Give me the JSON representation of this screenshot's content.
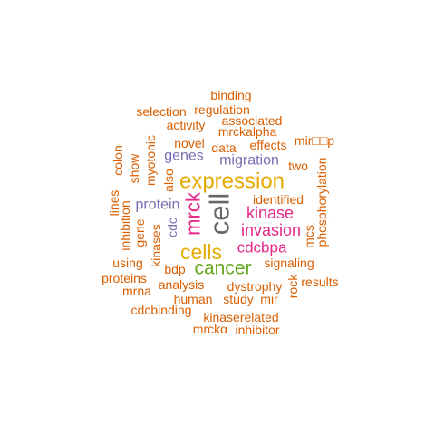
{
  "colors": {
    "orange": "#D95F02",
    "green": "#1B9E77",
    "purple": "#7570B3",
    "magenta": "#E7298A",
    "lime": "#66A61E",
    "gold": "#E6AB02",
    "gray": "#666666",
    "background": "#FFFFFF"
  },
  "words": [
    {
      "text": "cell",
      "color": "#666666",
      "rotated": true
    },
    {
      "text": "expression",
      "color": "#E6AB02",
      "rotated": false
    },
    {
      "text": "cells",
      "color": "#E6AB02",
      "rotated": false
    },
    {
      "text": "cancer",
      "color": "#66A61E",
      "rotated": false
    },
    {
      "text": "mrck",
      "color": "#E7298A",
      "rotated": true
    },
    {
      "text": "invasion",
      "color": "#E7298A",
      "rotated": false
    },
    {
      "text": "kinase",
      "color": "#E7298A",
      "rotated": false
    },
    {
      "text": "cdcbpa",
      "color": "#E7298A",
      "rotated": false
    },
    {
      "text": "migration",
      "color": "#7570B3",
      "rotated": false
    },
    {
      "text": "genes",
      "color": "#7570B3",
      "rotated": false
    },
    {
      "text": "protein",
      "color": "#7570B3",
      "rotated": false
    },
    {
      "text": "cdc",
      "color": "#7570B3",
      "rotated": true
    },
    {
      "text": "binding",
      "color": "#D95F02",
      "rotated": false
    },
    {
      "text": "regulation",
      "color": "#D95F02",
      "rotated": false
    },
    {
      "text": "selection",
      "color": "#D95F02",
      "rotated": false
    },
    {
      "text": "activity",
      "color": "#D95F02",
      "rotated": false
    },
    {
      "text": "associated",
      "color": "#D95F02",
      "rotated": false
    },
    {
      "text": "mrckalpha",
      "color": "#D95F02",
      "rotated": false
    },
    {
      "text": "novel",
      "color": "#D95F02",
      "rotated": false
    },
    {
      "text": "data",
      "color": "#D95F02",
      "rotated": false
    },
    {
      "text": "effects",
      "color": "#D95F02",
      "rotated": false
    },
    {
      "text": "mir□□p",
      "color": "#D95F02",
      "rotated": false
    },
    {
      "text": "two",
      "color": "#D95F02",
      "rotated": false
    },
    {
      "text": "identified",
      "color": "#D95F02",
      "rotated": false
    },
    {
      "text": "phosphorylation",
      "color": "#D95F02",
      "rotated": true
    },
    {
      "text": "mcs",
      "color": "#D95F02",
      "rotated": true
    },
    {
      "text": "colon",
      "color": "#D95F02",
      "rotated": true
    },
    {
      "text": "show",
      "color": "#D95F02",
      "rotated": true
    },
    {
      "text": "myotonic",
      "color": "#D95F02",
      "rotated": true
    },
    {
      "text": "also",
      "color": "#D95F02",
      "rotated": true
    },
    {
      "text": "lines",
      "color": "#D95F02",
      "rotated": true
    },
    {
      "text": "inhibition",
      "color": "#D95F02",
      "rotated": true
    },
    {
      "text": "gene",
      "color": "#D95F02",
      "rotated": true
    },
    {
      "text": "kinases",
      "color": "#D95F02",
      "rotated": true
    },
    {
      "text": "using",
      "color": "#D95F02",
      "rotated": false
    },
    {
      "text": "bdp",
      "color": "#D95F02",
      "rotated": false
    },
    {
      "text": "signaling",
      "color": "#D95F02",
      "rotated": false
    },
    {
      "text": "proteins",
      "color": "#D95F02",
      "rotated": false
    },
    {
      "text": "rock",
      "color": "#D95F02",
      "rotated": true
    },
    {
      "text": "results",
      "color": "#D95F02",
      "rotated": false
    },
    {
      "text": "analysis",
      "color": "#D95F02",
      "rotated": false
    },
    {
      "text": "dystrophy",
      "color": "#D95F02",
      "rotated": false
    },
    {
      "text": "mrna",
      "color": "#D95F02",
      "rotated": false
    },
    {
      "text": "human",
      "color": "#D95F02",
      "rotated": false
    },
    {
      "text": "study",
      "color": "#D95F02",
      "rotated": false
    },
    {
      "text": "mir",
      "color": "#D95F02",
      "rotated": false
    },
    {
      "text": "cdcbinding",
      "color": "#D95F02",
      "rotated": false
    },
    {
      "text": "kinaserelated",
      "color": "#D95F02",
      "rotated": false
    },
    {
      "text": "mrckα",
      "color": "#D95F02",
      "rotated": false
    },
    {
      "text": "inhibitor",
      "color": "#D95F02",
      "rotated": false
    }
  ]
}
